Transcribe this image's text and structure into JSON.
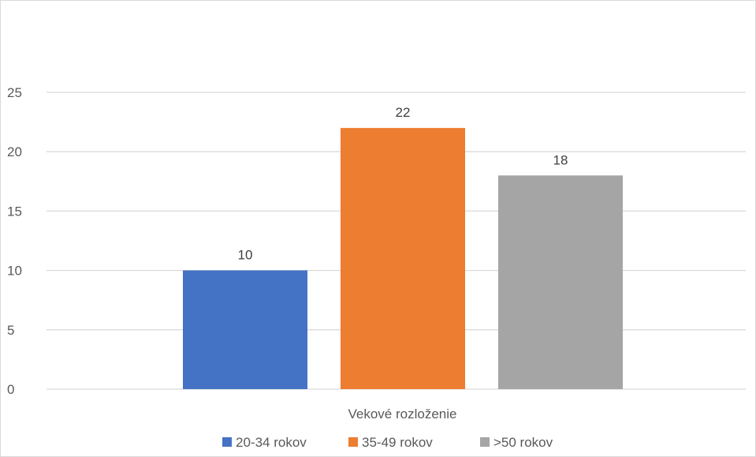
{
  "chart_data": {
    "type": "bar",
    "categories": [
      "Vekové rozloženie"
    ],
    "series": [
      {
        "name": "20-34 rokov",
        "values": [
          10
        ],
        "color": "#4472C4"
      },
      {
        "name": "35-49 rokov",
        "values": [
          22
        ],
        "color": "#ED7D31"
      },
      {
        "name": ">50 rokov",
        "values": [
          18
        ],
        "color": "#A5A5A5"
      }
    ],
    "ylim": [
      0,
      25
    ],
    "yticks": [
      0,
      5,
      10,
      15,
      20,
      25
    ],
    "grid": true,
    "data_labels": true,
    "legend": "bottom",
    "gridline_color": "#d9d9d9"
  }
}
